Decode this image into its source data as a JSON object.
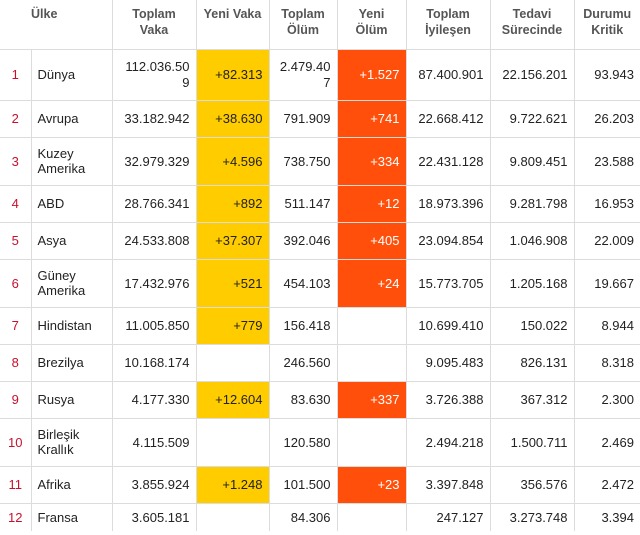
{
  "headers": {
    "country": "Ülke",
    "total_cases": "Toplam Vaka",
    "new_cases": "Yeni Vaka",
    "total_deaths": "Toplam Ölüm",
    "new_deaths": "Yeni Ölüm",
    "total_recovered": "Toplam İyileşen",
    "active": "Tedavi Sürecinde",
    "critical": "Durumu Kritik"
  },
  "colors": {
    "new_cases_highlight": "#ffcc00",
    "new_deaths_highlight": "#ff4f0a",
    "rank_text": "#c8102e"
  },
  "rows": [
    {
      "rank": "1",
      "country": "Dünya",
      "total_cases": "112.036.509",
      "new_cases": "+82.313",
      "total_deaths": "2.479.407",
      "new_deaths": "+1.527",
      "recovered": "87.400.901",
      "active": "22.156.201",
      "critical": "93.943"
    },
    {
      "rank": "2",
      "country": "Avrupa",
      "total_cases": "33.182.942",
      "new_cases": "+38.630",
      "total_deaths": "791.909",
      "new_deaths": "+741",
      "recovered": "22.668.412",
      "active": "9.722.621",
      "critical": "26.203"
    },
    {
      "rank": "3",
      "country": "Kuzey Amerika",
      "total_cases": "32.979.329",
      "new_cases": "+4.596",
      "total_deaths": "738.750",
      "new_deaths": "+334",
      "recovered": "22.431.128",
      "active": "9.809.451",
      "critical": "23.588"
    },
    {
      "rank": "4",
      "country": "ABD",
      "total_cases": "28.766.341",
      "new_cases": "+892",
      "total_deaths": "511.147",
      "new_deaths": "+12",
      "recovered": "18.973.396",
      "active": "9.281.798",
      "critical": "16.953"
    },
    {
      "rank": "5",
      "country": "Asya",
      "total_cases": "24.533.808",
      "new_cases": "+37.307",
      "total_deaths": "392.046",
      "new_deaths": "+405",
      "recovered": "23.094.854",
      "active": "1.046.908",
      "critical": "22.009"
    },
    {
      "rank": "6",
      "country": "Güney Amerika",
      "total_cases": "17.432.976",
      "new_cases": "+521",
      "total_deaths": "454.103",
      "new_deaths": "+24",
      "recovered": "15.773.705",
      "active": "1.205.168",
      "critical": "19.667"
    },
    {
      "rank": "7",
      "country": "Hindistan",
      "total_cases": "11.005.850",
      "new_cases": "+779",
      "total_deaths": "156.418",
      "new_deaths": "",
      "recovered": "10.699.410",
      "active": "150.022",
      "critical": "8.944"
    },
    {
      "rank": "8",
      "country": "Brezilya",
      "total_cases": "10.168.174",
      "new_cases": "",
      "total_deaths": "246.560",
      "new_deaths": "",
      "recovered": "9.095.483",
      "active": "826.131",
      "critical": "8.318"
    },
    {
      "rank": "9",
      "country": "Rusya",
      "total_cases": "4.177.330",
      "new_cases": "+12.604",
      "total_deaths": "83.630",
      "new_deaths": "+337",
      "recovered": "3.726.388",
      "active": "367.312",
      "critical": "2.300"
    },
    {
      "rank": "10",
      "country": "Birleşik Krallık",
      "total_cases": "4.115.509",
      "new_cases": "",
      "total_deaths": "120.580",
      "new_deaths": "",
      "recovered": "2.494.218",
      "active": "1.500.711",
      "critical": "2.469"
    },
    {
      "rank": "11",
      "country": "Afrika",
      "total_cases": "3.855.924",
      "new_cases": "+1.248",
      "total_deaths": "101.500",
      "new_deaths": "+23",
      "recovered": "3.397.848",
      "active": "356.576",
      "critical": "2.472"
    },
    {
      "rank": "12",
      "country": "Fransa",
      "total_cases": "3.605.181",
      "new_cases": "",
      "total_deaths": "84.306",
      "new_deaths": "",
      "recovered": "247.127",
      "active": "3.273.748",
      "critical": "3.394"
    }
  ]
}
